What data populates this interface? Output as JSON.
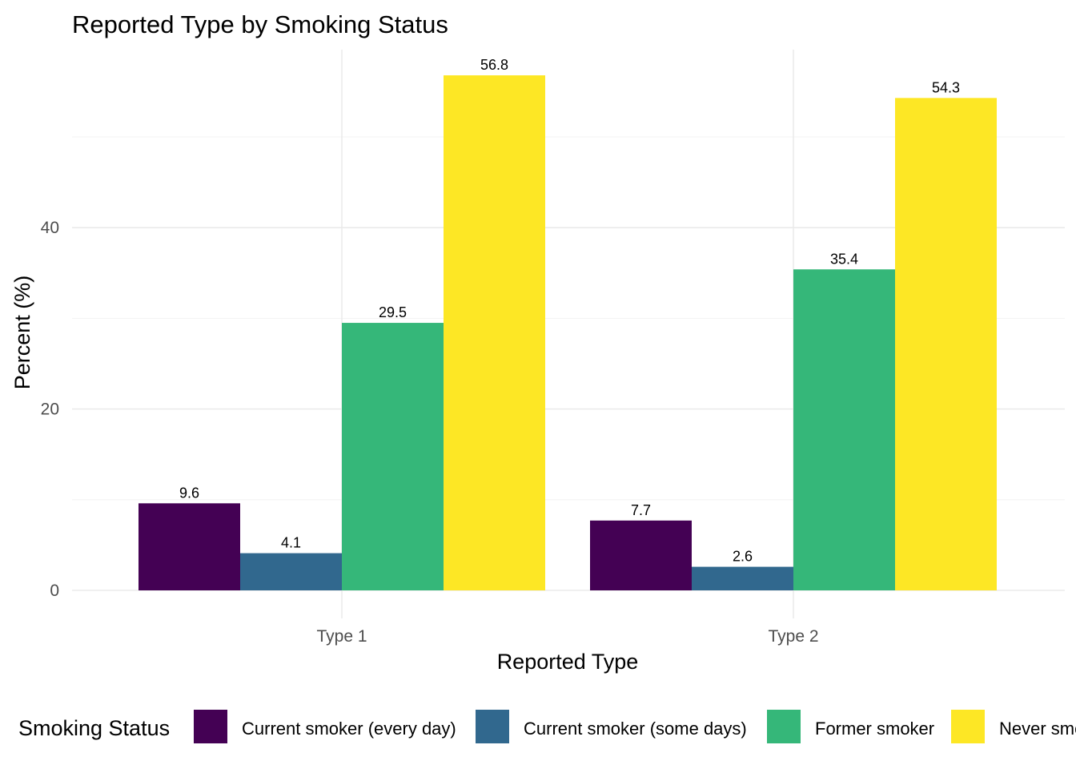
{
  "chart_data": {
    "type": "bar",
    "title": "Reported Type by Smoking Status",
    "xlabel": "Reported Type",
    "ylabel": "Percent (%)",
    "categories": [
      "Type 1",
      "Type 2"
    ],
    "series": [
      {
        "name": "Current smoker (every day)",
        "color": "#440154",
        "values": [
          9.6,
          7.7
        ]
      },
      {
        "name": "Current smoker (some days)",
        "color": "#31688E",
        "values": [
          4.1,
          2.6
        ]
      },
      {
        "name": "Former smoker",
        "color": "#35B779",
        "values": [
          29.5,
          35.4
        ]
      },
      {
        "name": "Never smoker",
        "color": "#FDE725",
        "values": [
          56.8,
          54.3
        ]
      }
    ],
    "data_labels": [
      [
        "9.6",
        "7.7"
      ],
      [
        "4.1",
        "2.6"
      ],
      [
        "29.5",
        "35.4"
      ],
      [
        "56.8",
        "54.3"
      ]
    ],
    "ylim": [
      0,
      59.6
    ],
    "y_ticks": [
      0,
      20,
      40
    ],
    "y_tick_labels": [
      "0",
      "20",
      "40"
    ],
    "grid": true,
    "legend": {
      "title": "Smoking Status",
      "position": "bottom"
    }
  }
}
